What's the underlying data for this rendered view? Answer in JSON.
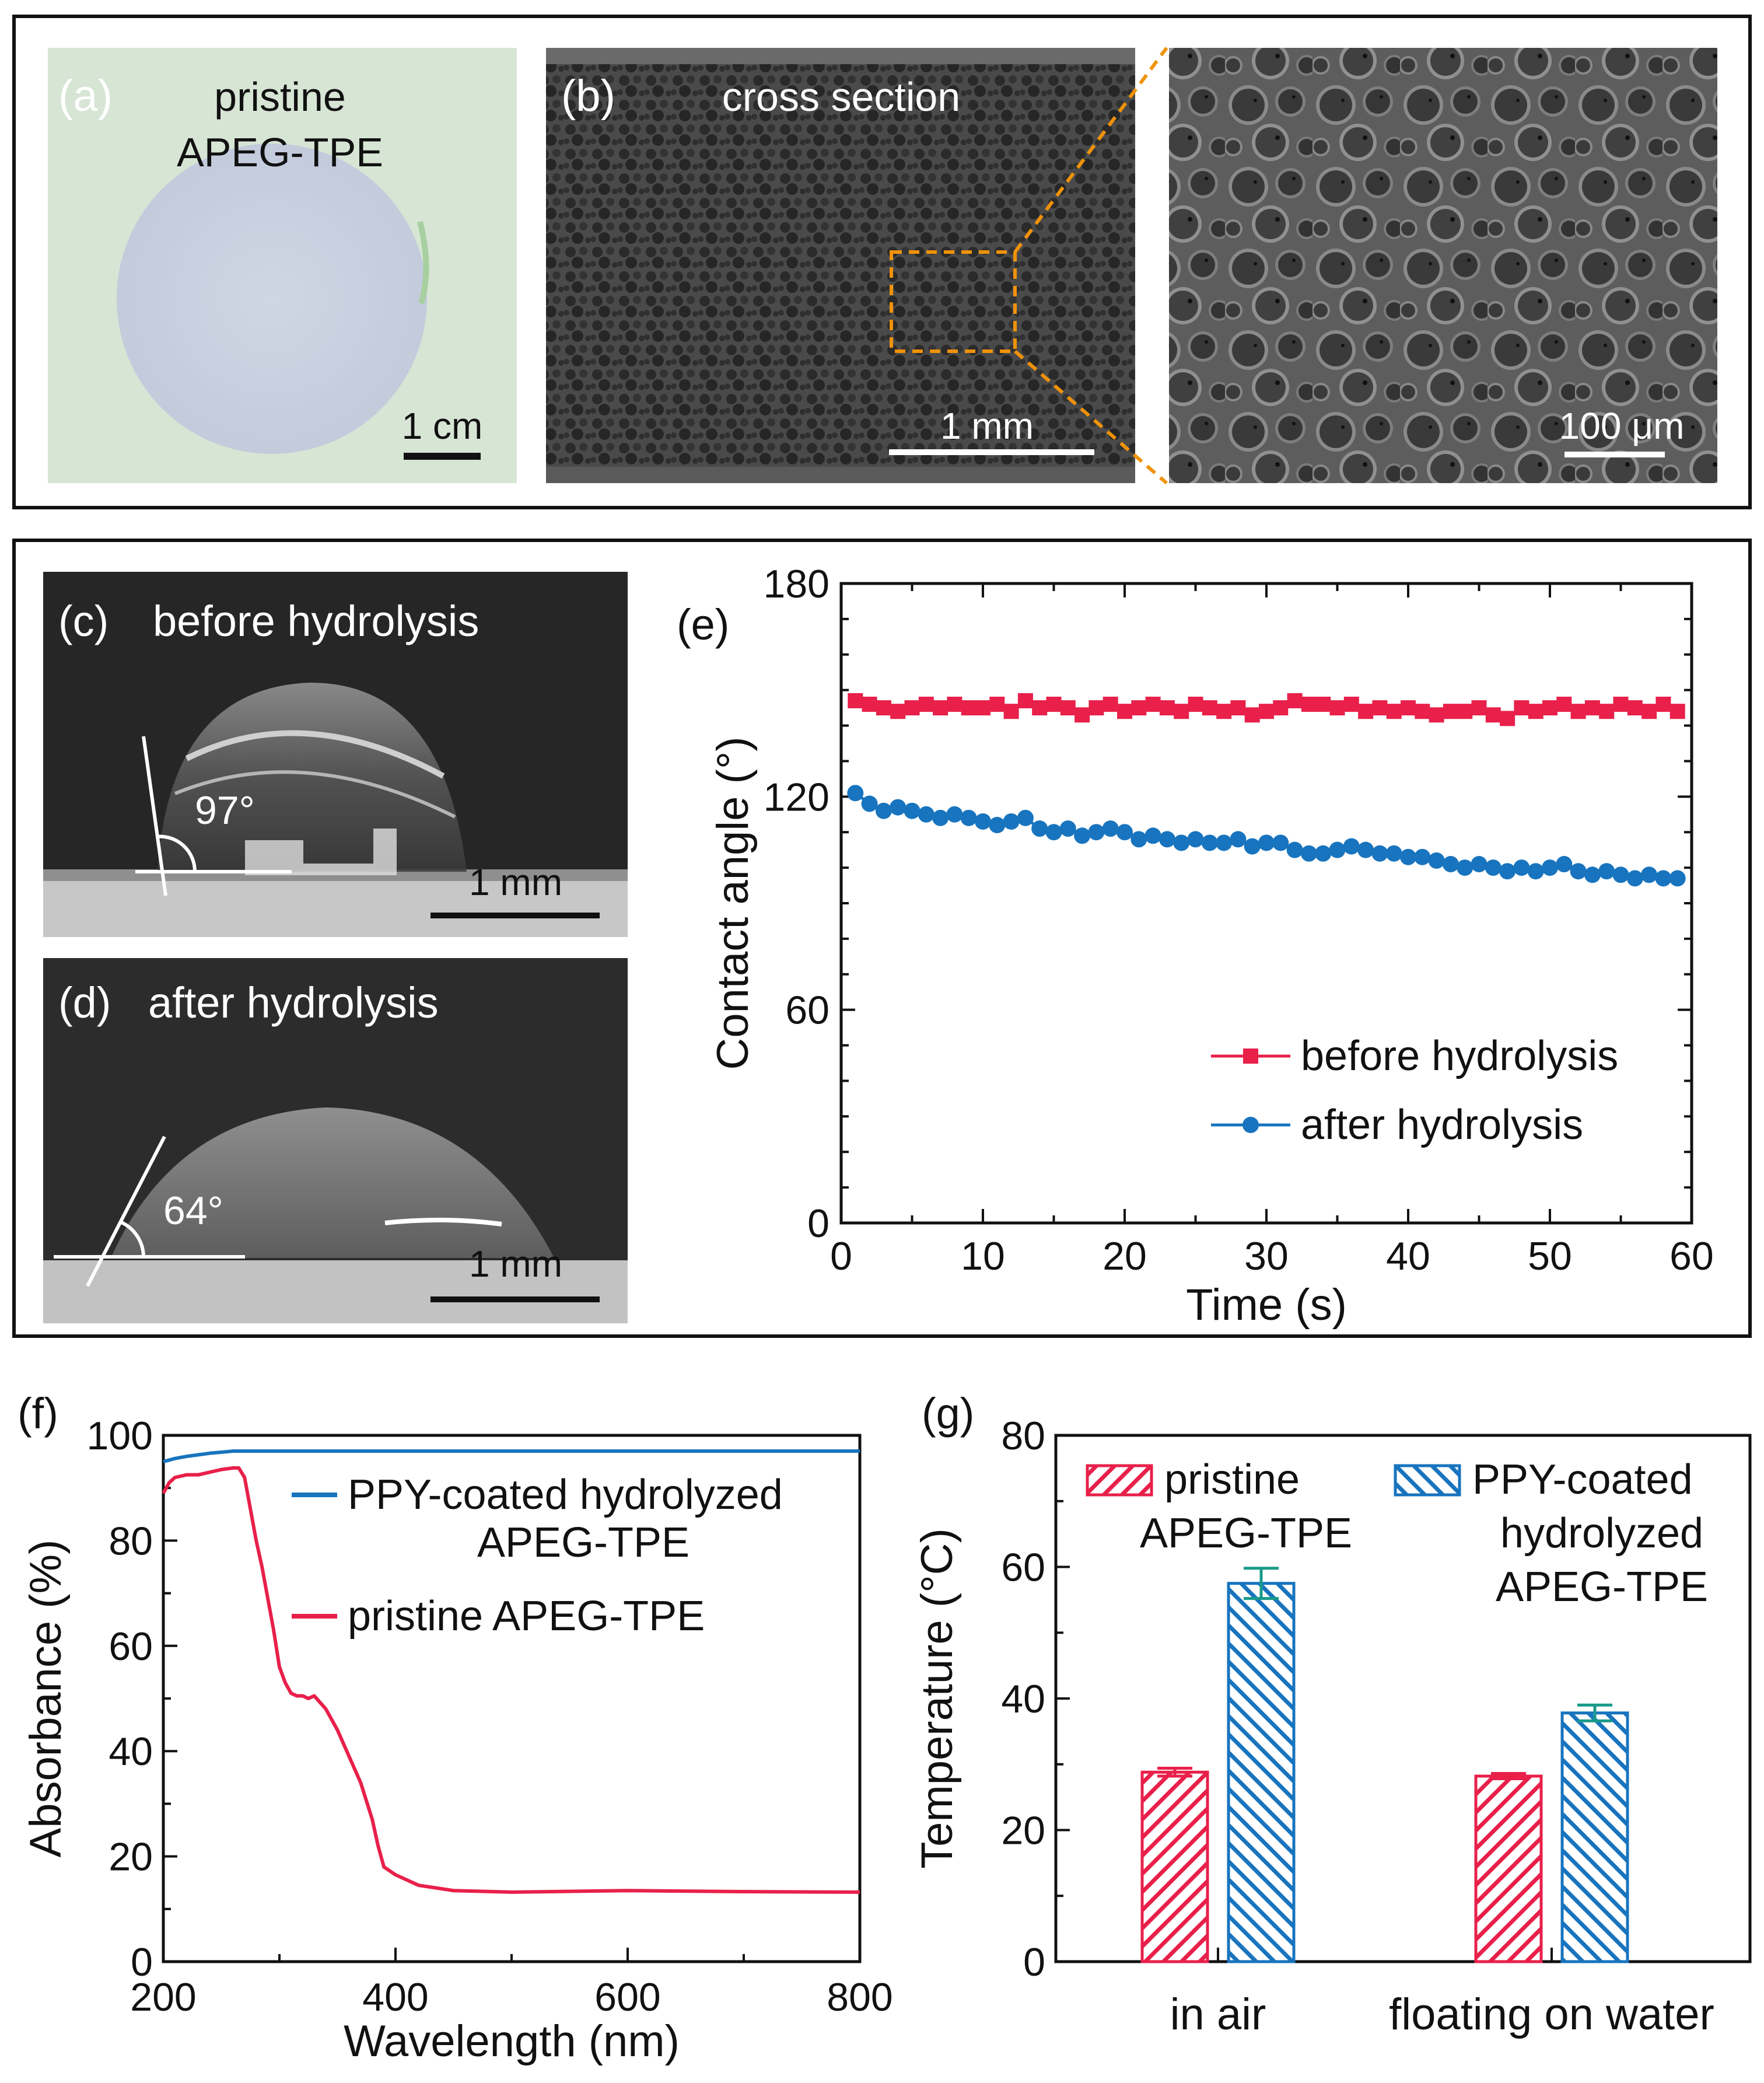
{
  "panel_a": {
    "label": "(a)",
    "title_line1": "pristine",
    "title_line2": "APEG-TPE",
    "scale_bar": "1 cm"
  },
  "panel_b": {
    "label": "(b)",
    "title": "cross section",
    "scale_bar": "1 mm",
    "zoom_scale_bar": "100 μm"
  },
  "panel_c": {
    "label": "(c)",
    "title": "before hydrolysis",
    "angle": "97°",
    "scale_bar": "1 mm"
  },
  "panel_d": {
    "label": "(d)",
    "title": "after hydrolysis",
    "angle": "64°",
    "scale_bar": "1 mm"
  },
  "panel_f_label": "(f)",
  "panel_g_label": "(g)",
  "colors": {
    "red": "#e8204a",
    "blue": "#1874be",
    "teal_error": "#1a9a8a"
  },
  "chart_data": [
    {
      "id": "e",
      "label": "(e)",
      "type": "line",
      "title": "",
      "xlabel": "Time (s)",
      "ylabel": "Contact angle (°)",
      "xlim": [
        0,
        60
      ],
      "ylim": [
        0,
        180
      ],
      "xticks": [
        "0",
        "10",
        "20",
        "30",
        "40",
        "50",
        "60"
      ],
      "yticks": [
        "0",
        "60",
        "120",
        "180"
      ],
      "series": [
        {
          "name": "before hydrolysis",
          "marker": "square",
          "color": "#e8204a",
          "x": [
            1,
            2,
            3,
            4,
            5,
            6,
            7,
            8,
            9,
            10,
            11,
            12,
            13,
            14,
            15,
            16,
            17,
            18,
            19,
            20,
            21,
            22,
            23,
            24,
            25,
            26,
            27,
            28,
            29,
            30,
            31,
            32,
            33,
            34,
            35,
            36,
            37,
            38,
            39,
            40,
            41,
            42,
            43,
            44,
            45,
            46,
            47,
            48,
            49,
            50,
            51,
            52,
            53,
            54,
            55,
            56,
            57,
            58,
            59
          ],
          "y": [
            147,
            146,
            145,
            144,
            145,
            146,
            145,
            146,
            145,
            145,
            146,
            144,
            147,
            145,
            146,
            145,
            143,
            145,
            146,
            144,
            145,
            146,
            145,
            144,
            146,
            145,
            144,
            145,
            143,
            144,
            145,
            147,
            146,
            146,
            145,
            146,
            144,
            145,
            144,
            145,
            144,
            143,
            144,
            144,
            145,
            143,
            142,
            145,
            144,
            145,
            146,
            144,
            145,
            144,
            146,
            145,
            144,
            146,
            144
          ]
        },
        {
          "name": "after hydrolysis",
          "marker": "circle",
          "color": "#1874be",
          "x": [
            1,
            2,
            3,
            4,
            5,
            6,
            7,
            8,
            9,
            10,
            11,
            12,
            13,
            14,
            15,
            16,
            17,
            18,
            19,
            20,
            21,
            22,
            23,
            24,
            25,
            26,
            27,
            28,
            29,
            30,
            31,
            32,
            33,
            34,
            35,
            36,
            37,
            38,
            39,
            40,
            41,
            42,
            43,
            44,
            45,
            46,
            47,
            48,
            49,
            50,
            51,
            52,
            53,
            54,
            55,
            56,
            57,
            58,
            59
          ],
          "y": [
            121,
            118,
            116,
            117,
            116,
            115,
            114,
            115,
            114,
            113,
            112,
            113,
            114,
            111,
            110,
            111,
            109,
            110,
            111,
            110,
            108,
            109,
            108,
            107,
            108,
            107,
            107,
            108,
            106,
            107,
            107,
            105,
            104,
            104,
            105,
            106,
            105,
            104,
            104,
            103,
            103,
            102,
            101,
            100,
            101,
            100,
            99,
            100,
            99,
            100,
            101,
            99,
            98,
            99,
            98,
            97,
            98,
            97,
            97
          ]
        }
      ],
      "legend_position": "bottom-right"
    },
    {
      "id": "f",
      "label": "(f)",
      "type": "line",
      "title": "",
      "xlabel": "Wavelength (nm)",
      "ylabel": "Absorbance (%)",
      "xlim": [
        200,
        800
      ],
      "ylim": [
        0,
        100
      ],
      "xticks": [
        "200",
        "400",
        "600",
        "800"
      ],
      "yticks": [
        "0",
        "20",
        "40",
        "60",
        "80",
        "100"
      ],
      "series": [
        {
          "name": "PPY-coated hydrolyzed APEG-TPE",
          "legend_line1": "PPY-coated hydrolyzed",
          "legend_line2": "APEG-TPE",
          "color": "#1874be",
          "x": [
            200,
            210,
            220,
            230,
            240,
            250,
            260,
            280,
            300,
            350,
            400,
            500,
            600,
            700,
            800
          ],
          "y": [
            95,
            95.6,
            96,
            96.3,
            96.6,
            96.8,
            97,
            97,
            97,
            97,
            97,
            97,
            97,
            97,
            97
          ]
        },
        {
          "name": "pristine APEG-TPE",
          "color": "#e8204a",
          "x": [
            200,
            205,
            210,
            220,
            230,
            240,
            250,
            260,
            265,
            270,
            275,
            280,
            285,
            290,
            295,
            300,
            305,
            310,
            315,
            320,
            325,
            330,
            340,
            350,
            360,
            370,
            380,
            385,
            390,
            400,
            420,
            450,
            500,
            600,
            700,
            800
          ],
          "y": [
            89,
            91,
            92,
            92.5,
            92.5,
            93,
            93.5,
            93.8,
            93.8,
            92,
            86,
            80,
            75,
            69,
            63,
            56,
            53,
            51,
            50.5,
            50.5,
            50,
            50.5,
            48,
            44,
            39,
            34,
            27,
            22,
            18,
            16.5,
            14.5,
            13.5,
            13.2,
            13.5,
            13.3,
            13.2
          ]
        }
      ],
      "legend_position": "top-right"
    },
    {
      "id": "g",
      "label": "(g)",
      "type": "bar",
      "title": "",
      "xlabel": "",
      "ylabel": "Temperature (°C)",
      "ylim": [
        0,
        80
      ],
      "yticks": [
        "0",
        "20",
        "40",
        "60",
        "80"
      ],
      "categories": [
        "in air",
        "floating on water"
      ],
      "series": [
        {
          "name": "pristine APEG-TPE",
          "legend_line1": "pristine",
          "legend_line2": "APEG-TPE",
          "color": "#e8204a",
          "values": [
            28.8,
            28.2
          ],
          "errors": [
            0.6,
            0.4
          ]
        },
        {
          "name": "PPY-coated hydrolyzed APEG-TPE",
          "legend_line1": "PPY-coated",
          "legend_line2": "hydrolyzed",
          "legend_line3": "APEG-TPE",
          "color": "#1874be",
          "values": [
            57.5,
            37.8
          ],
          "errors": [
            2.3,
            1.2
          ]
        }
      ],
      "legend_position": "top"
    }
  ]
}
